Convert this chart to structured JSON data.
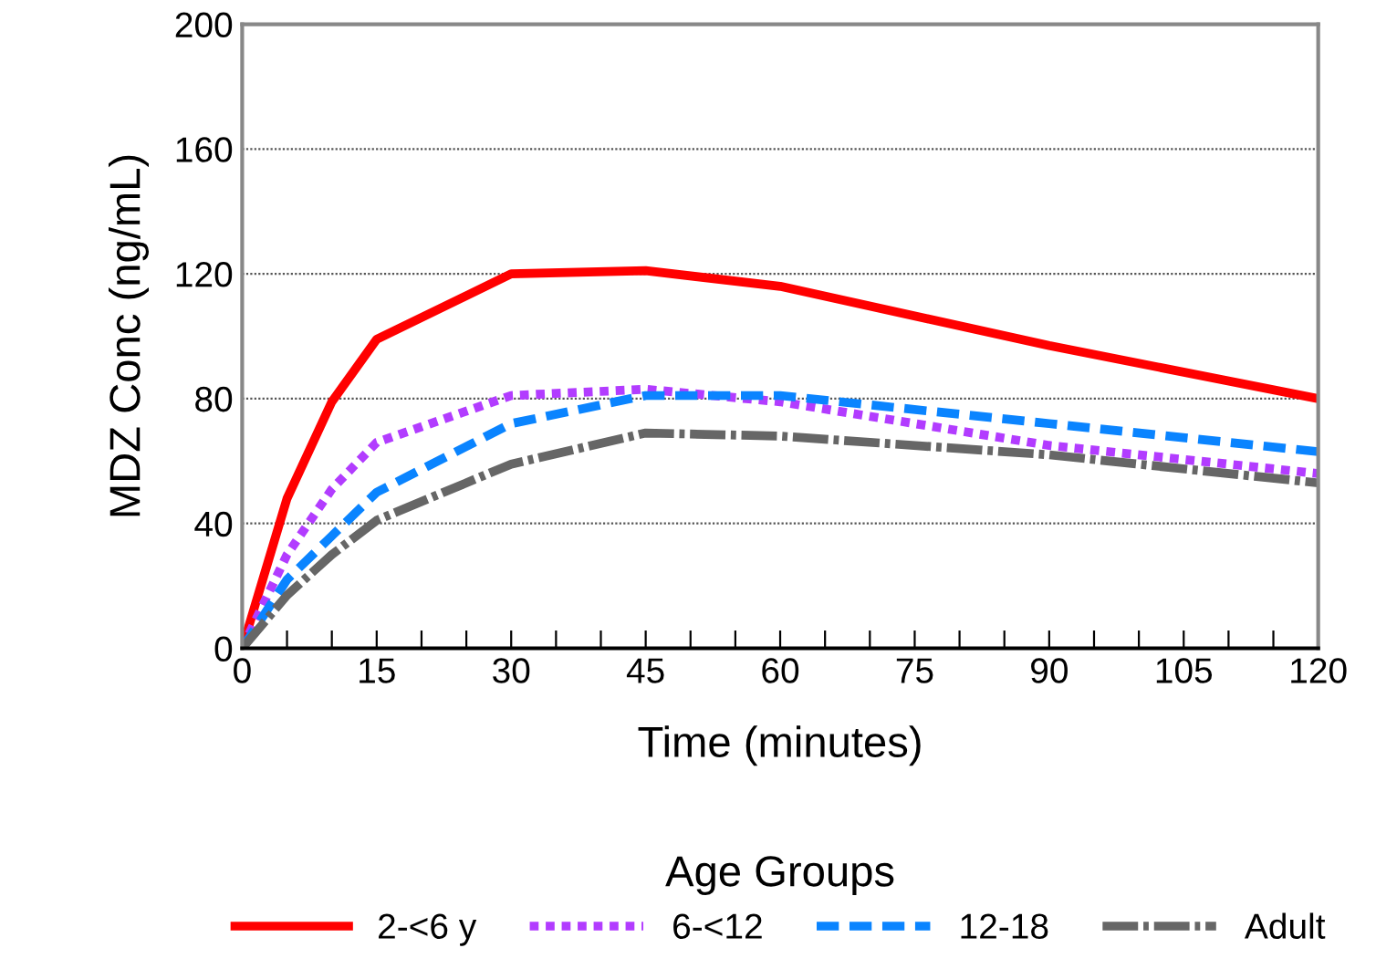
{
  "chart_data": {
    "type": "line",
    "xlabel": "Time (minutes)",
    "ylabel": "MDZ Conc (ng/mL)",
    "legend_title": "Age Groups",
    "legend": "bottom",
    "grid": "y",
    "marker": "none",
    "xlim": [
      0,
      120
    ],
    "ylim": [
      0,
      200
    ],
    "xticks": [
      0,
      {
        "value": 5,
        "label": null
      },
      {
        "value": 10,
        "label": null
      },
      15,
      {
        "value": 20,
        "label": null
      },
      {
        "value": 25,
        "label": null
      },
      30,
      {
        "value": 35,
        "label": null
      },
      {
        "value": 40,
        "label": null
      },
      45,
      {
        "value": 50,
        "label": null
      },
      {
        "value": 55,
        "label": null
      },
      60,
      {
        "value": 65,
        "label": null
      },
      {
        "value": 70,
        "label": null
      },
      75,
      {
        "value": 80,
        "label": null
      },
      {
        "value": 85,
        "label": null
      },
      90,
      {
        "value": 95,
        "label": null
      },
      {
        "value": 100,
        "label": null
      },
      105,
      {
        "value": 110,
        "label": null
      },
      {
        "value": 115,
        "label": null
      },
      120
    ],
    "yticks": [
      0,
      40,
      80,
      120,
      160,
      200
    ],
    "series": [
      {
        "name": "2-<6 y",
        "color": "#ff0000",
        "line_style": "solid",
        "x": [
          0,
          5,
          10,
          15,
          30,
          45,
          60,
          90,
          120
        ],
        "values": [
          0,
          48,
          79,
          99,
          120,
          121,
          116,
          97,
          80
        ]
      },
      {
        "name": "6-<12",
        "color": "#b23cff",
        "line_style": "dotted",
        "x": [
          0,
          5,
          10,
          15,
          30,
          45,
          60,
          90,
          120
        ],
        "values": [
          0,
          30,
          51,
          66,
          81,
          83,
          79,
          65,
          56
        ]
      },
      {
        "name": "12-18",
        "color": "#0a84ff",
        "line_style": "dashed",
        "x": [
          0,
          5,
          10,
          15,
          30,
          45,
          60,
          90,
          120
        ],
        "values": [
          0,
          22,
          36,
          50,
          72,
          81,
          81,
          72,
          63
        ]
      },
      {
        "name": "Adult",
        "color": "#666666",
        "line_style": "dashdot",
        "x": [
          0,
          5,
          10,
          15,
          30,
          45,
          60,
          90,
          120
        ],
        "values": [
          0,
          17,
          30,
          41,
          59,
          69,
          68,
          62,
          53
        ]
      }
    ]
  }
}
